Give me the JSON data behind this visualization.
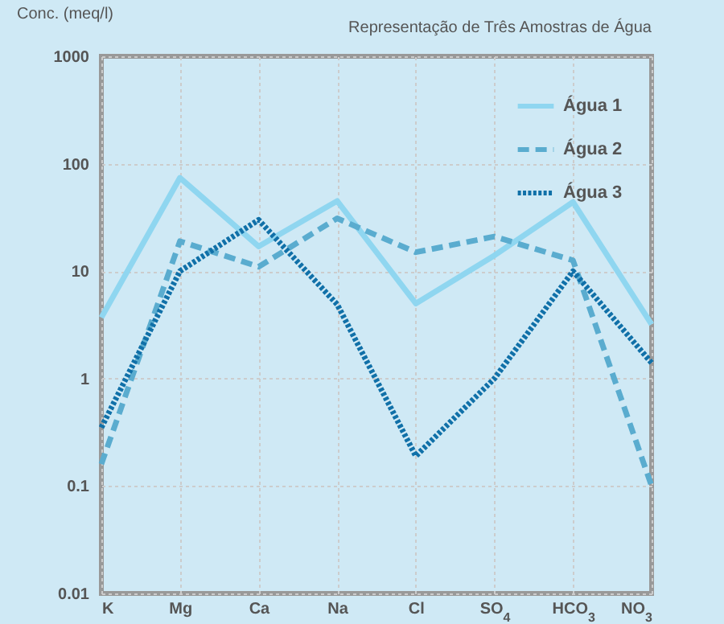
{
  "chart_data": {
    "type": "line",
    "title": "Representação de Três Amostras de Água",
    "ylabel": "Conc. (meq/l)",
    "categories": [
      "K",
      "Mg",
      "Ca",
      "Na",
      "Cl",
      "SO$_{4}$",
      "HCO$_{3}$",
      "NO$_{3}$"
    ],
    "series": [
      {
        "name": "Água 1",
        "color": "#8fd6f0",
        "line_style": "solid",
        "values": [
          3.7,
          74,
          17,
          45,
          5,
          14,
          44,
          3.2
        ]
      },
      {
        "name": "Água 2",
        "color": "#5aaccf",
        "line_style": "dashed",
        "values": [
          0.16,
          19,
          11,
          31,
          15,
          21,
          12.6,
          0.1
        ]
      },
      {
        "name": "Água 3",
        "color": "#1070a8",
        "line_style": "dotted",
        "values": [
          0.35,
          10,
          30,
          4.9,
          0.19,
          1,
          10,
          1.4
        ]
      }
    ],
    "log": "y",
    "ylim": [
      0.01,
      1000
    ],
    "yticks": [
      0.01,
      0.1,
      1,
      10,
      100,
      1000
    ],
    "grid": true,
    "legend": "top right",
    "marker": "none"
  }
}
